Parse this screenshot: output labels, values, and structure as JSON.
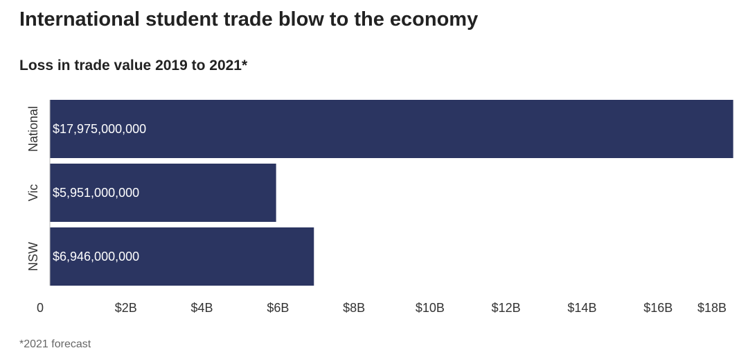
{
  "header": {
    "title": "International student trade blow to the economy",
    "subtitle": "Loss in trade value 2019 to 2021*"
  },
  "footnote": "*2021 forecast",
  "colors": {
    "bar": "#2b3561",
    "bar_label": "#ffffff",
    "axis_text": "#333333",
    "baseline": "#bbbbbb"
  },
  "chart_data": {
    "type": "bar",
    "orientation": "horizontal",
    "title": "International student trade blow to the economy",
    "subtitle": "Loss in trade value 2019 to 2021*",
    "categories": [
      "National",
      "Vic",
      "NSW"
    ],
    "values": [
      17975000000,
      5951000000,
      6946000000
    ],
    "data_labels": [
      "$17,975,000,000",
      "$5,951,000,000",
      "$6,946,000,000"
    ],
    "xlim": [
      0,
      18000000000
    ],
    "ticks": [
      0,
      2000000000,
      4000000000,
      6000000000,
      8000000000,
      10000000000,
      12000000000,
      14000000000,
      16000000000,
      18000000000
    ],
    "tick_labels": [
      "0",
      "$2B",
      "$4B",
      "$6B",
      "$8B",
      "$10B",
      "$12B",
      "$14B",
      "$16B",
      "$18B"
    ],
    "xlabel": "",
    "ylabel": "",
    "grid": false,
    "legend": "none"
  }
}
